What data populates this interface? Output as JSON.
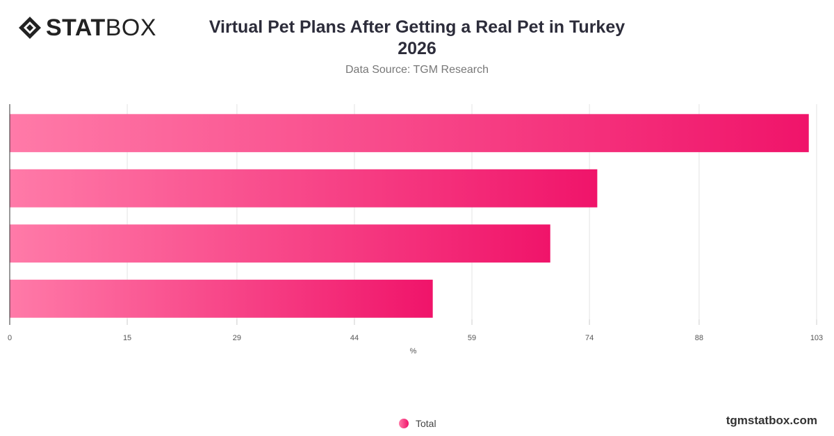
{
  "header": {
    "logo_bold": "STAT",
    "logo_light": "BOX",
    "title_line1": "Virtual Pet Plans After Getting a Real Pet in Turkey",
    "title_line2": "2026",
    "subtitle": "Data Source: TGM Research"
  },
  "chart_data": {
    "type": "bar",
    "orientation": "horizontal",
    "categories": [
      "",
      "",
      "",
      ""
    ],
    "series": [
      {
        "name": "Total",
        "values": [
          102,
          75,
          69,
          54
        ]
      }
    ],
    "xlabel": "%",
    "ylabel": "",
    "xlim": [
      0,
      103
    ],
    "xticks": [
      "0",
      "15",
      "29",
      "44",
      "59",
      "74",
      "88",
      "103"
    ],
    "grid": true,
    "legend_position": "bottom",
    "colors": {
      "bar_start": "#ff7aa8",
      "bar_end": "#f0146a"
    }
  },
  "legend": {
    "label": "Total"
  },
  "footer": {
    "brand": "tgmstatbox.com"
  }
}
